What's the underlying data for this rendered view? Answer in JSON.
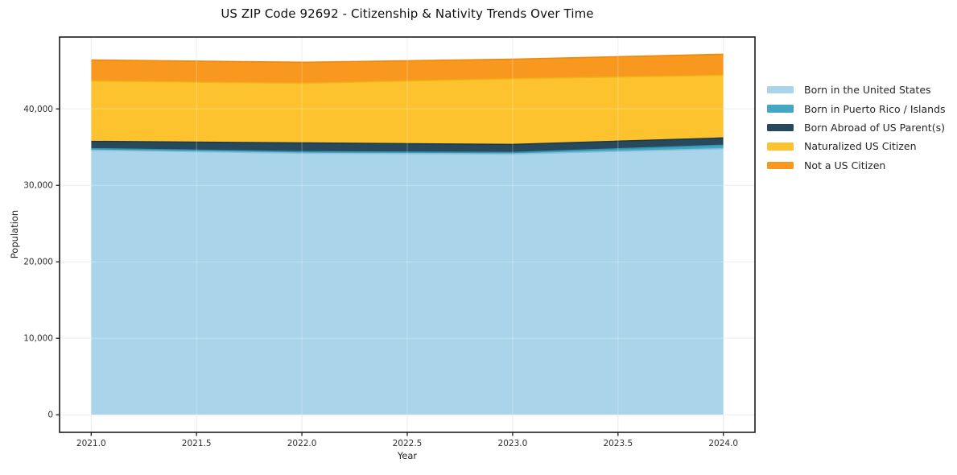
{
  "chart_data": {
    "type": "area",
    "title": "US ZIP Code 92692 - Citizenship & Nativity Trends Over Time",
    "xlabel": "Year",
    "ylabel": "Population",
    "x": [
      2021,
      2022,
      2023,
      2024
    ],
    "series": [
      {
        "name": "Born in the United States",
        "key": "born-in-us",
        "color": "#a9d4ea",
        "edge": "#86c0dc",
        "values": [
          34600,
          34200,
          34100,
          34800
        ]
      },
      {
        "name": "Born in Puerto Rico / Islands",
        "key": "born-puerto-rico",
        "color": "#44a8c4",
        "edge": "#3795b0",
        "values": [
          200,
          200,
          200,
          450
        ]
      },
      {
        "name": "Born Abroad of US Parent(s)",
        "key": "born-abroad",
        "color": "#28495c",
        "edge": "#1e3a4a",
        "values": [
          950,
          1150,
          1050,
          950
        ]
      },
      {
        "name": "Naturalized US Citizen",
        "key": "naturalized",
        "color": "#fdc32e",
        "edge": "#f0b318",
        "values": [
          7900,
          7800,
          8600,
          8200
        ]
      },
      {
        "name": "Not a US Citizen",
        "key": "not-citizen",
        "color": "#f8981f",
        "edge": "#ec8a0f",
        "values": [
          2750,
          2750,
          2550,
          2750
        ]
      }
    ],
    "totals": [
      46400,
      46100,
      46500,
      47150
    ],
    "xlim": [
      2020.85,
      2024.15
    ],
    "ylim": [
      -2300,
      49400
    ],
    "xticks": {
      "values": [
        2021.0,
        2021.5,
        2022.0,
        2022.5,
        2023.0,
        2023.5,
        2024.0
      ],
      "labels": [
        "2021.0",
        "2021.5",
        "2022.0",
        "2022.5",
        "2023.0",
        "2023.5",
        "2024.0"
      ]
    },
    "yticks": {
      "values": [
        0,
        10000,
        20000,
        30000,
        40000
      ],
      "labels": [
        "0",
        "10,000",
        "20,000",
        "30,000",
        "40,000"
      ]
    },
    "grid": true,
    "legend_position": "right"
  },
  "colors": {
    "background": "#ffffff",
    "spine": "#1c1c1c",
    "grid": "#e8e8e8",
    "grid_overlay": "rgba(255,255,255,0.30)",
    "tick_text": "#2e2e2e"
  }
}
